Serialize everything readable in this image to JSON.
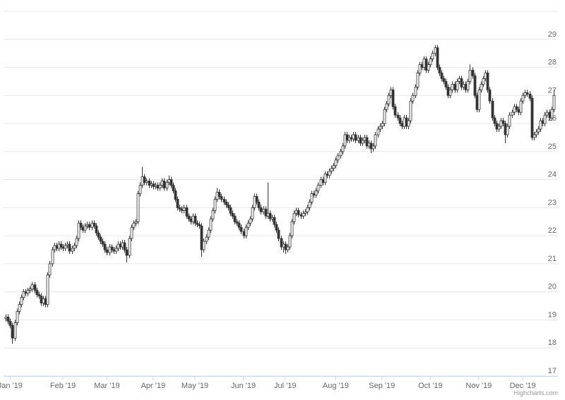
{
  "chart_data": {
    "type": "candlestick",
    "credits": "Highcharts.com",
    "up_color": "#ffffff",
    "down_color": "#333333",
    "line_color": "#333333",
    "grid": true,
    "xlim": [
      -1,
      251
    ],
    "ylim": [
      17,
      30
    ],
    "yticks": [
      17,
      18,
      19,
      20,
      21,
      22,
      23,
      24,
      25,
      26,
      27,
      28,
      29
    ],
    "xticks": [
      {
        "value": 2,
        "label": "Jan '19"
      },
      {
        "value": 26,
        "label": "Feb '19"
      },
      {
        "value": 46,
        "label": "Mar '19"
      },
      {
        "value": 67,
        "label": "Apr '19"
      },
      {
        "value": 86,
        "label": "May '19"
      },
      {
        "value": 108,
        "label": "Jun '19"
      },
      {
        "value": 127,
        "label": "Jul '19"
      },
      {
        "value": 150,
        "label": "Aug '19"
      },
      {
        "value": 171,
        "label": "Sep '19"
      },
      {
        "value": 193,
        "label": "Oct '19"
      },
      {
        "value": 215,
        "label": "Nov '19"
      },
      {
        "value": 235,
        "label": "Dec '19"
      }
    ],
    "open": [
      19.05,
      19.1,
      18.95,
      18.8,
      18.35,
      18.9,
      19.3,
      19.55,
      19.8,
      20.0,
      19.95,
      20.05,
      20.1,
      20.25,
      20.05,
      19.9,
      19.85,
      19.6,
      19.75,
      19.55,
      20.6,
      21.0,
      21.5,
      21.65,
      21.55,
      21.7,
      21.6,
      21.55,
      21.65,
      21.7,
      21.45,
      21.55,
      21.65,
      21.9,
      22.45,
      22.3,
      22.2,
      22.35,
      22.4,
      22.3,
      22.45,
      22.35,
      22.1,
      21.95,
      21.8,
      21.7,
      21.5,
      21.4,
      21.6,
      21.5,
      21.45,
      21.55,
      21.7,
      21.6,
      21.75,
      21.5,
      21.3,
      21.9,
      22.3,
      22.45,
      22.5,
      23.5,
      23.8,
      24.1,
      23.9,
      23.95,
      23.8,
      23.85,
      23.75,
      23.8,
      23.7,
      23.8,
      23.95,
      23.7,
      23.9,
      24.0,
      23.8,
      23.6,
      23.3,
      23.0,
      22.95,
      22.9,
      23.0,
      22.7,
      22.6,
      22.5,
      22.7,
      22.45,
      22.4,
      22.35,
      21.5,
      21.8,
      21.95,
      22.2,
      22.6,
      22.9,
      23.3,
      23.55,
      23.4,
      23.3,
      23.2,
      23.1,
      23.0,
      22.8,
      22.7,
      22.5,
      22.45,
      22.3,
      22.15,
      22.0,
      22.3,
      22.45,
      22.6,
      23.0,
      23.4,
      23.2,
      23.0,
      22.85,
      22.95,
      22.7,
      22.8,
      22.6,
      22.65,
      22.4,
      22.2,
      21.9,
      21.6,
      21.7,
      21.5,
      21.6,
      22.0,
      22.5,
      22.8,
      22.9,
      22.75,
      22.7,
      22.8,
      22.85,
      23.0,
      23.2,
      23.5,
      23.45,
      23.6,
      23.8,
      24.0,
      23.9,
      24.2,
      24.15,
      24.3,
      24.4,
      24.5,
      24.7,
      24.85,
      25.0,
      25.2,
      25.6,
      25.4,
      25.5,
      25.45,
      25.6,
      25.4,
      25.5,
      25.3,
      25.4,
      25.5,
      25.2,
      25.3,
      25.1,
      25.2,
      25.6,
      25.8,
      25.9,
      26.0,
      26.5,
      26.7,
      27.0,
      27.2,
      26.6,
      26.3,
      26.2,
      26.0,
      25.9,
      26.2,
      25.9,
      26.1,
      26.8,
      27.0,
      27.3,
      27.8,
      28.1,
      28.0,
      28.3,
      27.9,
      28.1,
      28.3,
      28.5,
      28.7,
      28.0,
      27.8,
      27.6,
      27.5,
      27.3,
      27.0,
      27.2,
      27.4,
      27.2,
      27.5,
      27.6,
      27.3,
      27.4,
      27.2,
      27.5,
      27.9,
      27.7,
      27.0,
      26.5,
      27.2,
      27.4,
      27.6,
      27.8,
      27.2,
      26.8,
      26.2,
      26.0,
      25.8,
      25.9,
      26.1,
      26.0,
      25.6,
      25.9,
      26.3,
      26.4,
      26.6,
      26.5,
      26.4,
      26.8,
      27.0,
      27.1,
      27.05,
      26.9,
      25.5,
      25.6,
      25.7,
      25.8,
      26.1,
      26.0,
      26.3,
      26.4,
      26.2,
      26.5
    ],
    "high": [
      19.2,
      19.2,
      19.05,
      18.9,
      19.0,
      19.4,
      19.65,
      19.9,
      20.1,
      20.1,
      20.15,
      20.2,
      20.35,
      20.35,
      20.15,
      20.0,
      19.95,
      19.85,
      19.85,
      20.7,
      21.1,
      21.6,
      21.75,
      21.75,
      21.8,
      21.8,
      21.7,
      21.75,
      21.8,
      21.8,
      21.65,
      21.75,
      22.0,
      22.55,
      22.55,
      22.4,
      22.45,
      22.5,
      22.5,
      22.55,
      22.55,
      22.45,
      22.2,
      22.05,
      21.9,
      21.8,
      21.6,
      21.7,
      21.7,
      21.6,
      21.65,
      21.8,
      21.8,
      21.85,
      21.85,
      21.6,
      22.0,
      22.4,
      22.55,
      22.6,
      23.6,
      23.9,
      24.45,
      24.2,
      24.05,
      24.05,
      23.95,
      23.95,
      23.9,
      23.9,
      23.9,
      24.05,
      24.05,
      24.0,
      24.15,
      24.1,
      23.9,
      23.7,
      23.4,
      23.1,
      23.05,
      23.1,
      23.1,
      22.8,
      22.7,
      22.8,
      22.8,
      22.55,
      22.5,
      22.45,
      21.9,
      22.05,
      22.3,
      22.7,
      23.0,
      23.4,
      23.7,
      23.65,
      23.5,
      23.4,
      23.3,
      23.2,
      23.1,
      22.9,
      22.8,
      22.6,
      22.55,
      22.4,
      22.25,
      22.4,
      22.55,
      22.7,
      23.1,
      23.5,
      23.5,
      23.3,
      23.1,
      23.05,
      23.05,
      23.9,
      22.9,
      22.75,
      22.75,
      22.5,
      22.3,
      22.0,
      21.8,
      21.8,
      21.7,
      22.1,
      22.6,
      22.9,
      23.0,
      23.0,
      22.85,
      22.9,
      22.95,
      23.1,
      23.3,
      23.6,
      23.6,
      23.7,
      23.9,
      24.1,
      24.1,
      24.3,
      24.3,
      24.4,
      24.5,
      24.6,
      24.8,
      24.95,
      25.1,
      25.3,
      25.7,
      25.7,
      25.6,
      25.6,
      25.7,
      25.7,
      25.6,
      25.6,
      25.5,
      25.6,
      25.6,
      25.4,
      25.4,
      25.3,
      25.7,
      25.9,
      26.0,
      26.1,
      26.6,
      26.8,
      27.1,
      27.3,
      27.3,
      26.7,
      26.4,
      26.3,
      26.1,
      26.3,
      26.3,
      26.2,
      26.9,
      27.1,
      27.4,
      27.9,
      28.2,
      28.2,
      28.4,
      28.4,
      28.2,
      28.4,
      28.6,
      28.8,
      28.8,
      28.1,
      27.9,
      27.7,
      27.6,
      27.4,
      27.3,
      27.5,
      27.5,
      27.6,
      27.7,
      27.7,
      27.5,
      27.5,
      27.6,
      28.1,
      28.0,
      27.8,
      27.1,
      27.3,
      27.5,
      27.7,
      27.9,
      27.9,
      27.3,
      26.9,
      26.3,
      26.1,
      26.0,
      26.2,
      26.2,
      26.1,
      26.0,
      26.4,
      26.5,
      26.7,
      26.7,
      26.6,
      26.9,
      27.1,
      27.2,
      27.2,
      27.15,
      27.0,
      25.7,
      25.8,
      25.9,
      26.2,
      26.2,
      26.4,
      26.5,
      26.5,
      26.6,
      27.2
    ],
    "low": [
      18.95,
      18.85,
      18.7,
      18.15,
      18.25,
      18.8,
      19.2,
      19.45,
      19.7,
      19.85,
      19.85,
      19.95,
      20.0,
      19.95,
      19.8,
      19.75,
      19.5,
      19.5,
      19.45,
      19.45,
      20.5,
      20.9,
      21.4,
      21.45,
      21.45,
      21.5,
      21.45,
      21.45,
      21.55,
      21.35,
      21.35,
      21.45,
      21.55,
      21.8,
      22.2,
      22.1,
      22.1,
      22.25,
      22.2,
      22.2,
      22.25,
      22.0,
      21.85,
      21.7,
      21.6,
      21.4,
      21.3,
      21.3,
      21.4,
      21.35,
      21.35,
      21.45,
      21.5,
      21.5,
      21.4,
      21.05,
      21.2,
      21.8,
      22.2,
      22.35,
      22.4,
      23.4,
      23.7,
      23.8,
      23.8,
      23.7,
      23.7,
      23.65,
      23.65,
      23.6,
      23.6,
      23.7,
      23.6,
      23.6,
      23.8,
      23.7,
      23.5,
      23.2,
      22.9,
      22.85,
      22.8,
      22.8,
      22.6,
      22.5,
      22.4,
      22.4,
      22.35,
      22.3,
      22.25,
      21.25,
      21.4,
      21.7,
      21.85,
      22.1,
      22.5,
      22.8,
      23.2,
      23.3,
      23.2,
      23.1,
      23.0,
      22.9,
      22.7,
      22.6,
      22.4,
      22.35,
      22.2,
      22.05,
      21.9,
      21.9,
      22.2,
      22.35,
      22.5,
      22.9,
      23.1,
      22.9,
      22.75,
      22.75,
      22.6,
      22.6,
      22.5,
      22.5,
      22.3,
      22.1,
      21.8,
      21.5,
      21.4,
      21.35,
      21.4,
      21.5,
      21.9,
      22.4,
      22.7,
      22.65,
      22.6,
      22.6,
      22.7,
      22.75,
      22.9,
      23.1,
      23.35,
      23.35,
      23.5,
      23.7,
      23.8,
      23.8,
      24.05,
      24.05,
      24.2,
      24.3,
      24.4,
      24.6,
      24.75,
      24.9,
      25.1,
      25.3,
      25.3,
      25.35,
      25.35,
      25.3,
      25.3,
      25.2,
      25.2,
      25.3,
      25.1,
      25.1,
      24.95,
      25.0,
      25.1,
      25.5,
      25.7,
      25.8,
      25.9,
      26.4,
      26.6,
      26.9,
      26.5,
      26.2,
      26.1,
      25.9,
      25.8,
      25.8,
      25.8,
      25.8,
      26.0,
      26.7,
      26.9,
      27.2,
      27.7,
      27.9,
      27.9,
      27.8,
      27.8,
      28.0,
      28.2,
      28.4,
      27.9,
      27.7,
      27.5,
      27.4,
      27.2,
      26.9,
      26.9,
      27.1,
      27.1,
      27.1,
      27.4,
      27.2,
      27.2,
      27.1,
      27.1,
      27.4,
      27.6,
      26.9,
      26.4,
      26.4,
      27.1,
      27.3,
      27.5,
      27.1,
      26.7,
      26.1,
      25.9,
      25.7,
      25.7,
      25.8,
      25.9,
      25.3,
      25.5,
      25.8,
      26.2,
      26.3,
      26.4,
      26.3,
      26.3,
      26.7,
      26.9,
      26.95,
      26.8,
      25.4,
      25.4,
      25.5,
      25.6,
      25.7,
      25.9,
      25.9,
      26.2,
      26.1,
      26.1,
      26.4
    ],
    "close": [
      19.1,
      18.95,
      18.8,
      18.35,
      18.9,
      19.3,
      19.55,
      19.8,
      20.0,
      19.95,
      20.05,
      20.1,
      20.25,
      20.05,
      19.9,
      19.85,
      19.6,
      19.75,
      19.55,
      20.6,
      21.0,
      21.5,
      21.65,
      21.55,
      21.7,
      21.6,
      21.55,
      21.65,
      21.7,
      21.45,
      21.55,
      21.65,
      21.9,
      22.45,
      22.3,
      22.2,
      22.35,
      22.4,
      22.3,
      22.45,
      22.35,
      22.1,
      21.95,
      21.8,
      21.7,
      21.5,
      21.4,
      21.6,
      21.5,
      21.45,
      21.55,
      21.7,
      21.6,
      21.75,
      21.5,
      21.3,
      21.9,
      22.3,
      22.45,
      22.5,
      23.5,
      23.8,
      24.1,
      23.9,
      23.95,
      23.8,
      23.85,
      23.75,
      23.8,
      23.7,
      23.8,
      23.95,
      23.7,
      23.9,
      24.0,
      23.8,
      23.6,
      23.3,
      23.0,
      22.95,
      22.9,
      23.0,
      22.7,
      22.6,
      22.5,
      22.7,
      22.45,
      22.4,
      22.35,
      21.5,
      21.8,
      21.95,
      22.2,
      22.6,
      22.9,
      23.3,
      23.55,
      23.4,
      23.3,
      23.2,
      23.1,
      23.0,
      22.8,
      22.7,
      22.5,
      22.45,
      22.3,
      22.15,
      22.0,
      22.3,
      22.45,
      22.6,
      23.0,
      23.4,
      23.2,
      23.0,
      22.85,
      22.95,
      22.7,
      22.8,
      22.6,
      22.65,
      22.4,
      22.2,
      21.9,
      21.6,
      21.7,
      21.5,
      21.6,
      22.0,
      22.5,
      22.8,
      22.9,
      22.75,
      22.7,
      22.8,
      22.85,
      23.0,
      23.2,
      23.5,
      23.45,
      23.6,
      23.8,
      24.0,
      23.9,
      24.2,
      24.15,
      24.3,
      24.4,
      24.5,
      24.7,
      24.85,
      25.0,
      25.2,
      25.6,
      25.4,
      25.5,
      25.45,
      25.6,
      25.4,
      25.5,
      25.3,
      25.4,
      25.5,
      25.2,
      25.3,
      25.1,
      25.2,
      25.6,
      25.8,
      25.9,
      26.0,
      26.5,
      26.7,
      27.0,
      27.2,
      26.6,
      26.3,
      26.2,
      26.0,
      25.9,
      26.2,
      25.9,
      26.1,
      26.8,
      27.0,
      27.3,
      27.8,
      28.1,
      28.0,
      28.3,
      27.9,
      28.1,
      28.3,
      28.5,
      28.7,
      28.0,
      27.8,
      27.6,
      27.5,
      27.3,
      27.0,
      27.2,
      27.4,
      27.2,
      27.5,
      27.6,
      27.3,
      27.4,
      27.2,
      27.5,
      27.9,
      27.7,
      27.0,
      26.5,
      27.2,
      27.4,
      27.6,
      27.8,
      27.2,
      26.8,
      26.2,
      26.0,
      25.8,
      25.9,
      26.1,
      26.0,
      25.6,
      25.9,
      26.3,
      26.4,
      26.6,
      26.5,
      26.4,
      26.8,
      27.0,
      27.1,
      27.05,
      26.9,
      25.5,
      25.6,
      25.7,
      25.8,
      26.1,
      26.0,
      26.3,
      26.4,
      26.2,
      26.5,
      27.0
    ]
  }
}
